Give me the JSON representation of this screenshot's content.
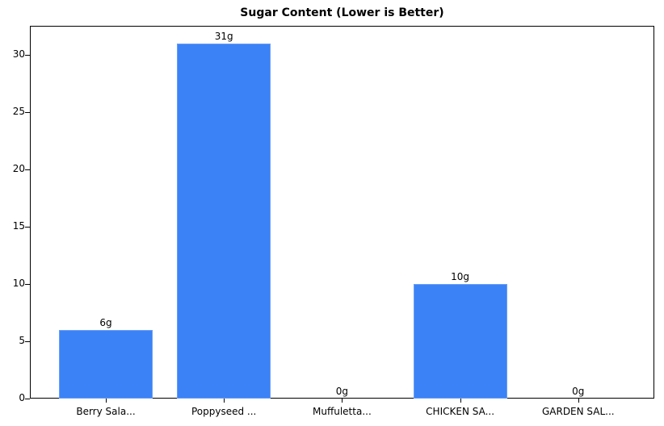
{
  "chart_data": {
    "type": "bar",
    "title": "Sugar Content (Lower is Better)",
    "categories": [
      "Berry Sala...",
      "Poppyseed ...",
      "Muffuletta...",
      "CHICKEN SA...",
      "GARDEN SAL..."
    ],
    "values": [
      6,
      31,
      0,
      10,
      0
    ],
    "value_labels": [
      "6g",
      "31g",
      "0g",
      "10g",
      "0g"
    ],
    "xlabel": "",
    "ylabel": "",
    "ylim": [
      0,
      32.5
    ],
    "yticks": [
      "0",
      "5",
      "10",
      "15",
      "20",
      "25",
      "30"
    ],
    "grid": false,
    "bar_color": "#3b82f6"
  }
}
